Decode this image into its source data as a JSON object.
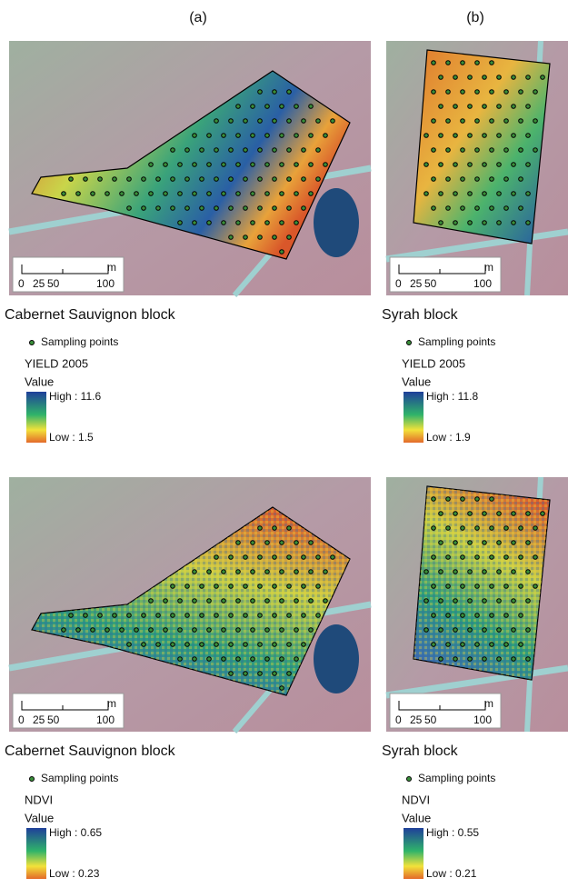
{
  "column_labels": [
    "(a)",
    "(b)"
  ],
  "panels": [
    {
      "block": "Cabernet Sauvignon block",
      "legend_point": "Sampling points",
      "variable": "YIELD 2005",
      "value_heading": "Value",
      "high": "High : 11.6",
      "low": "Low : 1.5",
      "scale": {
        "ticks": [
          "0",
          "25",
          "50",
          "100"
        ],
        "unit": "m"
      }
    },
    {
      "block": "Syrah block",
      "legend_point": "Sampling points",
      "variable": "YIELD 2005",
      "value_heading": "Value",
      "high": "High : 11.8",
      "low": "Low : 1.9",
      "scale": {
        "ticks": [
          "0",
          "25",
          "50",
          "100"
        ],
        "unit": "m"
      }
    },
    {
      "block": "Cabernet Sauvignon block",
      "legend_point": "Sampling points",
      "variable": "NDVI",
      "value_heading": "Value",
      "high": "High : 0.65",
      "low": "Low : 0.23",
      "scale": {
        "ticks": [
          "0",
          "25",
          "50",
          "100"
        ],
        "unit": "m"
      }
    },
    {
      "block": "Syrah block",
      "legend_point": "Sampling points",
      "variable": "NDVI",
      "value_heading": "Value",
      "high": "High : 0.55",
      "low": "Low : 0.21",
      "scale": {
        "ticks": [
          "0",
          "25",
          "50",
          "100"
        ],
        "unit": "m"
      }
    }
  ]
}
